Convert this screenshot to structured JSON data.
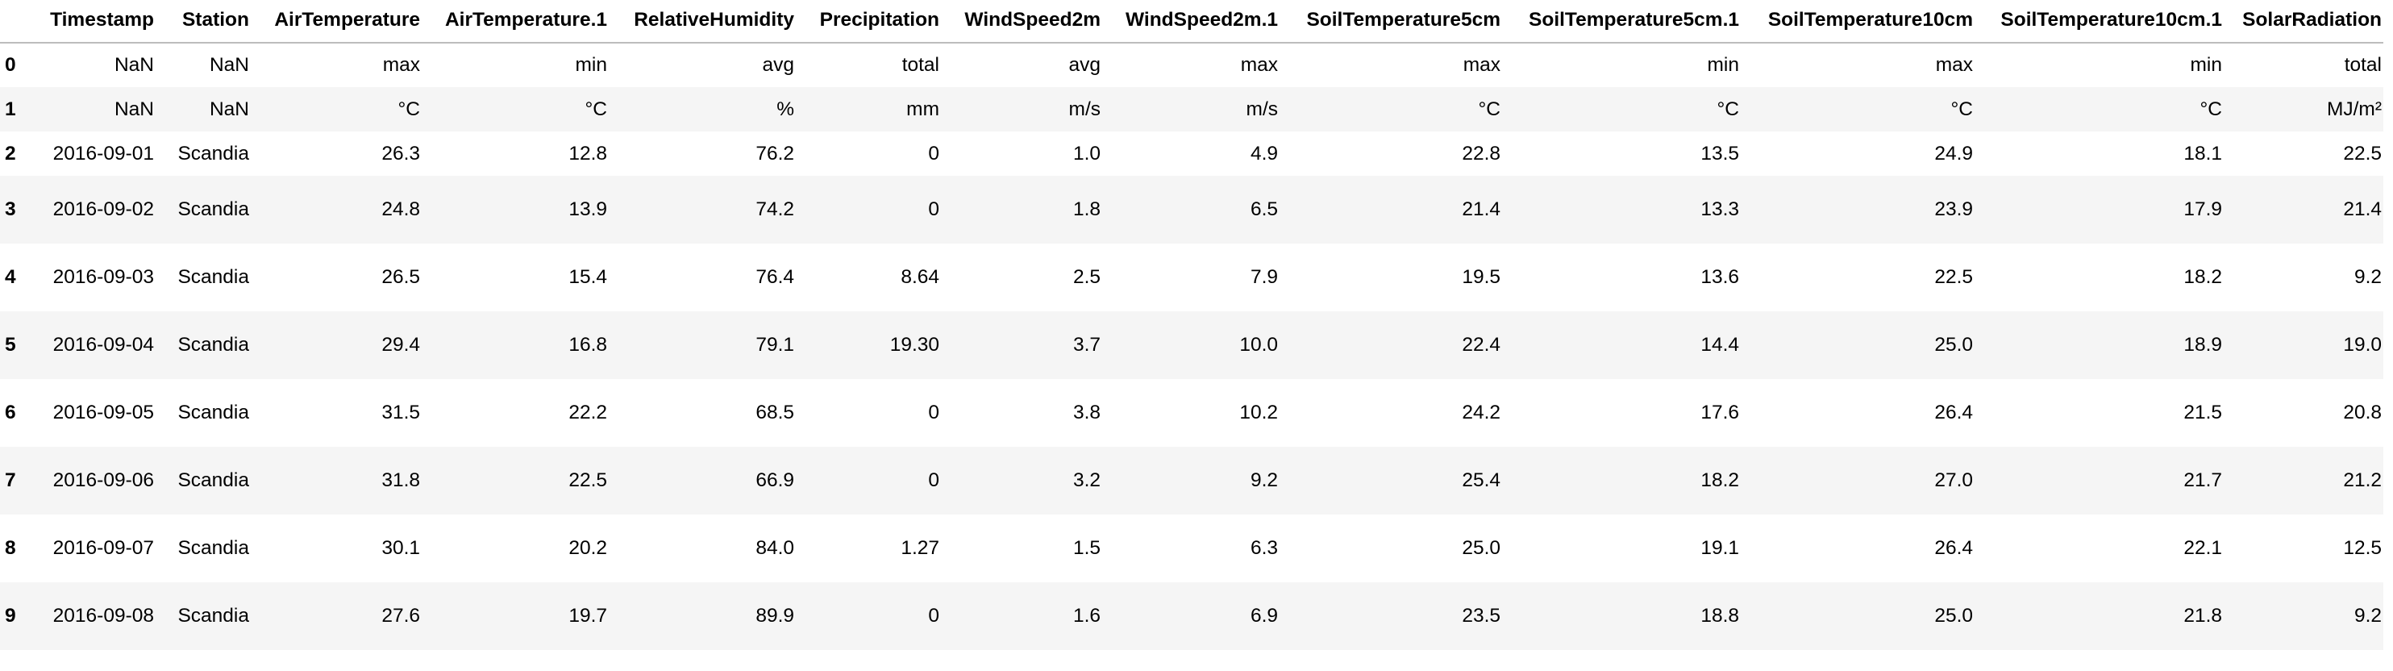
{
  "table": {
    "index_header": "",
    "columns": [
      "Timestamp",
      "Station",
      "AirTemperature",
      "AirTemperature.1",
      "RelativeHumidity",
      "Precipitation",
      "WindSpeed2m",
      "WindSpeed2m.1",
      "SoilTemperature5cm",
      "SoilTemperature5cm.1",
      "SoilTemperature10cm",
      "SoilTemperature10cm.1",
      "SolarRadiation"
    ],
    "rows": [
      {
        "index": "0",
        "cells": [
          "NaN",
          "NaN",
          "max",
          "min",
          "avg",
          "total",
          "avg",
          "max",
          "max",
          "min",
          "max",
          "min",
          "total"
        ]
      },
      {
        "index": "1",
        "cells": [
          "NaN",
          "NaN",
          "°C",
          "°C",
          "%",
          "mm",
          "m/s",
          "m/s",
          "°C",
          "°C",
          "°C",
          "°C",
          "MJ/m²"
        ]
      },
      {
        "index": "2",
        "cells": [
          "2016-09-01",
          "Scandia",
          "26.3",
          "12.8",
          "76.2",
          "0",
          "1.0",
          "4.9",
          "22.8",
          "13.5",
          "24.9",
          "18.1",
          "22.5"
        ]
      },
      {
        "index": "3",
        "cells": [
          "2016-09-02",
          "Scandia",
          "24.8",
          "13.9",
          "74.2",
          "0",
          "1.8",
          "6.5",
          "21.4",
          "13.3",
          "23.9",
          "17.9",
          "21.4"
        ]
      },
      {
        "index": "4",
        "cells": [
          "2016-09-03",
          "Scandia",
          "26.5",
          "15.4",
          "76.4",
          "8.64",
          "2.5",
          "7.9",
          "19.5",
          "13.6",
          "22.5",
          "18.2",
          "9.2"
        ]
      },
      {
        "index": "5",
        "cells": [
          "2016-09-04",
          "Scandia",
          "29.4",
          "16.8",
          "79.1",
          "19.30",
          "3.7",
          "10.0",
          "22.4",
          "14.4",
          "25.0",
          "18.9",
          "19.0"
        ]
      },
      {
        "index": "6",
        "cells": [
          "2016-09-05",
          "Scandia",
          "31.5",
          "22.2",
          "68.5",
          "0",
          "3.8",
          "10.2",
          "24.2",
          "17.6",
          "26.4",
          "21.5",
          "20.8"
        ]
      },
      {
        "index": "7",
        "cells": [
          "2016-09-06",
          "Scandia",
          "31.8",
          "22.5",
          "66.9",
          "0",
          "3.2",
          "9.2",
          "25.4",
          "18.2",
          "27.0",
          "21.7",
          "21.2"
        ]
      },
      {
        "index": "8",
        "cells": [
          "2016-09-07",
          "Scandia",
          "30.1",
          "20.2",
          "84.0",
          "1.27",
          "1.5",
          "6.3",
          "25.0",
          "19.1",
          "26.4",
          "22.1",
          "12.5"
        ]
      },
      {
        "index": "9",
        "cells": [
          "2016-09-08",
          "Scandia",
          "27.6",
          "19.7",
          "89.9",
          "0",
          "1.6",
          "6.9",
          "23.5",
          "18.8",
          "25.0",
          "21.8",
          "9.2"
        ]
      }
    ]
  },
  "colors": {
    "odd_row_background": "#f5f5f5",
    "even_row_background": "#ffffff",
    "header_border": "#bdbdbd",
    "text": "#000000"
  }
}
